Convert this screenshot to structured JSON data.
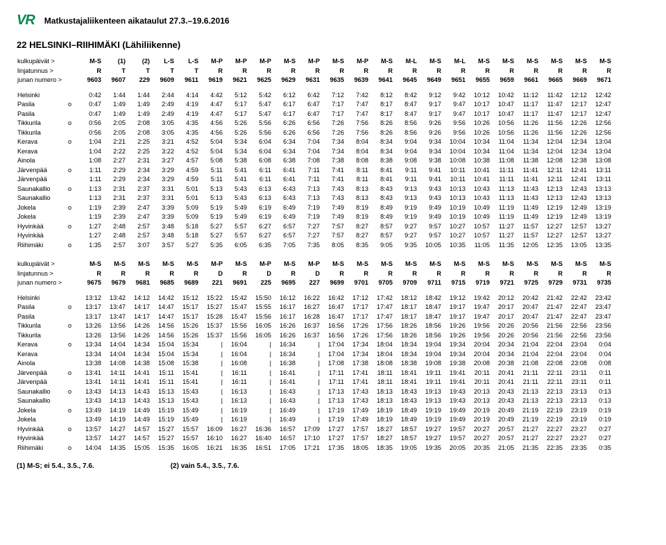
{
  "header": {
    "logo": "VR",
    "title": "Matkustajaliikenteen aikataulut 27.3.–19.6.2016"
  },
  "route_title": "22 HELSINKI–RIIHIMÄKI (Lähiliikenne)",
  "labels": {
    "days": "kulkupäivät >",
    "line": "linjatunnus >",
    "train": "junan numero >"
  },
  "footnotes": {
    "f1": "(1) M-S; ei 5.4., 3.5., 7.6.",
    "f2": "(2) vain 5.4., 3.5., 7.6."
  },
  "block1": {
    "days": [
      "M-S",
      "(1)",
      "(2)",
      "L-S",
      "L-S",
      "M-P",
      "M-P",
      "M-P",
      "M-S",
      "M-P",
      "M-S",
      "M-P",
      "M-S",
      "M-L",
      "M-S",
      "M-L",
      "M-S",
      "M-S",
      "M-S",
      "M-S",
      "M-S",
      "M-S"
    ],
    "line": [
      "R",
      "T",
      "T",
      "T",
      "T",
      "R",
      "R",
      "R",
      "R",
      "R",
      "R",
      "R",
      "R",
      "R",
      "R",
      "R",
      "R",
      "R",
      "R",
      "R",
      "R",
      "R"
    ],
    "train": [
      "9603",
      "9607",
      "229",
      "9609",
      "9611",
      "9619",
      "9621",
      "9625",
      "9629",
      "9631",
      "9635",
      "9639",
      "9641",
      "9645",
      "9649",
      "9651",
      "9655",
      "9659",
      "9661",
      "9665",
      "9669",
      "9671"
    ],
    "rows": [
      {
        "station": "Helsinki",
        "mark": "",
        "t": [
          "0:42",
          "1:44",
          "1:44",
          "2:44",
          "4:14",
          "4:42",
          "5:12",
          "5:42",
          "6:12",
          "6:42",
          "7:12",
          "7:42",
          "8:12",
          "8:42",
          "9:12",
          "9:42",
          "10:12",
          "10:42",
          "11:12",
          "11:42",
          "12:12",
          "12:42"
        ]
      },
      {
        "station": "Pasila",
        "mark": "o",
        "t": [
          "0:47",
          "1:49",
          "1:49",
          "2:49",
          "4:19",
          "4:47",
          "5:17",
          "5:47",
          "6:17",
          "6:47",
          "7:17",
          "7:47",
          "8:17",
          "8:47",
          "9:17",
          "9:47",
          "10:17",
          "10:47",
          "11:17",
          "11:47",
          "12:17",
          "12:47"
        ]
      },
      {
        "station": "Pasila",
        "mark": "",
        "t": [
          "0:47",
          "1:49",
          "1:49",
          "2:49",
          "4:19",
          "4:47",
          "5:17",
          "5:47",
          "6:17",
          "6:47",
          "7:17",
          "7:47",
          "8:17",
          "8:47",
          "9:17",
          "9:47",
          "10:17",
          "10:47",
          "11:17",
          "11:47",
          "12:17",
          "12:47"
        ]
      },
      {
        "station": "Tikkurila",
        "mark": "o",
        "t": [
          "0:56",
          "2:05",
          "2:08",
          "3:05",
          "4:35",
          "4:56",
          "5:26",
          "5:56",
          "6:26",
          "6:56",
          "7:26",
          "7:56",
          "8:26",
          "8:56",
          "9:26",
          "9:56",
          "10:26",
          "10:56",
          "11:26",
          "11:56",
          "12:26",
          "12:56"
        ]
      },
      {
        "station": "Tikkurila",
        "mark": "",
        "t": [
          "0:56",
          "2:05",
          "2:08",
          "3:05",
          "4:35",
          "4:56",
          "5:26",
          "5:56",
          "6:26",
          "6:56",
          "7:26",
          "7:56",
          "8:26",
          "8:56",
          "9:26",
          "9:56",
          "10:26",
          "10:56",
          "11:26",
          "11:56",
          "12:26",
          "12:56"
        ]
      },
      {
        "station": "Kerava",
        "mark": "o",
        "t": [
          "1:04",
          "2:21",
          "2:25",
          "3:21",
          "4:52",
          "5:04",
          "5:34",
          "6:04",
          "6:34",
          "7:04",
          "7:34",
          "8:04",
          "8:34",
          "9:04",
          "9:34",
          "10:04",
          "10:34",
          "11:04",
          "11:34",
          "12:04",
          "12:34",
          "13:04"
        ]
      },
      {
        "station": "Kerava",
        "mark": "",
        "t": [
          "1:04",
          "2:22",
          "2:25",
          "3:22",
          "4:52",
          "5:04",
          "5:34",
          "6:04",
          "6:34",
          "7:04",
          "7:34",
          "8:04",
          "8:34",
          "9:04",
          "9:34",
          "10:04",
          "10:34",
          "11:04",
          "11:34",
          "12:04",
          "12:34",
          "13:04"
        ]
      },
      {
        "station": "Ainola",
        "mark": "",
        "t": [
          "1:08",
          "2:27",
          "2:31",
          "3:27",
          "4:57",
          "5:08",
          "5:38",
          "6:08",
          "6:38",
          "7:08",
          "7:38",
          "8:08",
          "8:38",
          "9:08",
          "9:38",
          "10:08",
          "10:38",
          "11:08",
          "11:38",
          "12:08",
          "12:38",
          "13:08"
        ]
      },
      {
        "station": "Järvenpää",
        "mark": "o",
        "t": [
          "1:11",
          "2:29",
          "2:34",
          "3:29",
          "4:59",
          "5:11",
          "5:41",
          "6:11",
          "6:41",
          "7:11",
          "7:41",
          "8:11",
          "8:41",
          "9:11",
          "9:41",
          "10:11",
          "10:41",
          "11:11",
          "11:41",
          "12:11",
          "12:41",
          "13:11"
        ]
      },
      {
        "station": "Järvenpää",
        "mark": "",
        "t": [
          "1:11",
          "2:29",
          "2:34",
          "3:29",
          "4:59",
          "5:11",
          "5:41",
          "6:11",
          "6:41",
          "7:11",
          "7:41",
          "8:11",
          "8:41",
          "9:11",
          "9:41",
          "10:11",
          "10:41",
          "11:11",
          "11:41",
          "12:11",
          "12:41",
          "13:11"
        ]
      },
      {
        "station": "Saunakallio",
        "mark": "o",
        "t": [
          "1:13",
          "2:31",
          "2:37",
          "3:31",
          "5:01",
          "5:13",
          "5:43",
          "6:13",
          "6:43",
          "7:13",
          "7:43",
          "8:13",
          "8:43",
          "9:13",
          "9:43",
          "10:13",
          "10:43",
          "11:13",
          "11:43",
          "12:13",
          "12:43",
          "13:13"
        ]
      },
      {
        "station": "Saunakallio",
        "mark": "",
        "t": [
          "1:13",
          "2:31",
          "2:37",
          "3:31",
          "5:01",
          "5:13",
          "5:43",
          "6:13",
          "6:43",
          "7:13",
          "7:43",
          "8:13",
          "8:43",
          "9:13",
          "9:43",
          "10:13",
          "10:43",
          "11:13",
          "11:43",
          "12:13",
          "12:43",
          "13:13"
        ]
      },
      {
        "station": "Jokela",
        "mark": "o",
        "t": [
          "1:19",
          "2:39",
          "2:47",
          "3:39",
          "5:09",
          "5:19",
          "5:49",
          "6:19",
          "6:49",
          "7:19",
          "7:49",
          "8:19",
          "8:49",
          "9:19",
          "9:49",
          "10:19",
          "10:49",
          "11:19",
          "11:49",
          "12:19",
          "12:49",
          "13:19"
        ]
      },
      {
        "station": "Jokela",
        "mark": "",
        "t": [
          "1:19",
          "2:39",
          "2:47",
          "3:39",
          "5:09",
          "5:19",
          "5:49",
          "6:19",
          "6:49",
          "7:19",
          "7:49",
          "8:19",
          "8:49",
          "9:19",
          "9:49",
          "10:19",
          "10:49",
          "11:19",
          "11:49",
          "12:19",
          "12:49",
          "13:19"
        ]
      },
      {
        "station": "Hyvinkää",
        "mark": "o",
        "t": [
          "1:27",
          "2:48",
          "2:57",
          "3:48",
          "5:18",
          "5:27",
          "5:57",
          "6:27",
          "6:57",
          "7:27",
          "7:57",
          "8:27",
          "8:57",
          "9:27",
          "9:57",
          "10:27",
          "10:57",
          "11:27",
          "11:57",
          "12:27",
          "12:57",
          "13:27"
        ]
      },
      {
        "station": "Hyvinkää",
        "mark": "",
        "t": [
          "1:27",
          "2:48",
          "2:57",
          "3:48",
          "5:18",
          "5:27",
          "5:57",
          "6:27",
          "6:57",
          "7:27",
          "7:57",
          "8:27",
          "8:57",
          "9:27",
          "9:57",
          "10:27",
          "10:57",
          "11:27",
          "11:57",
          "12:27",
          "12:57",
          "13:27"
        ]
      },
      {
        "station": "Riihimäki",
        "mark": "o",
        "t": [
          "1:35",
          "2:57",
          "3:07",
          "3:57",
          "5:27",
          "5:35",
          "6:05",
          "6:35",
          "7:05",
          "7:35",
          "8:05",
          "8:35",
          "9:05",
          "9:35",
          "10:05",
          "10:35",
          "11:05",
          "11:35",
          "12:05",
          "12:35",
          "13:05",
          "13:35"
        ]
      }
    ]
  },
  "block2": {
    "days": [
      "M-S",
      "M-S",
      "M-S",
      "M-S",
      "M-S",
      "M-P",
      "M-S",
      "M-P",
      "M-S",
      "M-P",
      "M-S",
      "M-S",
      "M-S",
      "M-S",
      "M-S",
      "M-S",
      "M-S",
      "M-S",
      "M-S",
      "M-S",
      "M-S",
      "M-S"
    ],
    "line": [
      "R",
      "R",
      "R",
      "R",
      "R",
      "D",
      "R",
      "D",
      "R",
      "D",
      "R",
      "R",
      "R",
      "R",
      "R",
      "R",
      "R",
      "R",
      "R",
      "R",
      "R",
      "R"
    ],
    "train": [
      "9675",
      "9679",
      "9681",
      "9685",
      "9689",
      "221",
      "9691",
      "225",
      "9695",
      "227",
      "9699",
      "9701",
      "9705",
      "9709",
      "9711",
      "9715",
      "9719",
      "9721",
      "9725",
      "9729",
      "9731",
      "9735"
    ],
    "rows": [
      {
        "station": "Helsinki",
        "mark": "",
        "t": [
          "13:12",
          "13:42",
          "14:12",
          "14:42",
          "15:12",
          "15:22",
          "15:42",
          "15:50",
          "16:12",
          "16:22",
          "16:42",
          "17:12",
          "17:42",
          "18:12",
          "18:42",
          "19:12",
          "19:42",
          "20:12",
          "20:42",
          "21:42",
          "22:42",
          "23:42"
        ]
      },
      {
        "station": "Pasila",
        "mark": "o",
        "t": [
          "13:17",
          "13:47",
          "14:17",
          "14:47",
          "15:17",
          "15:27",
          "15:47",
          "15:55",
          "16:17",
          "16:27",
          "16:47",
          "17:17",
          "17:47",
          "18:17",
          "18:47",
          "19:17",
          "19:47",
          "20:17",
          "20:47",
          "21:47",
          "22:47",
          "23:47"
        ]
      },
      {
        "station": "Pasila",
        "mark": "",
        "t": [
          "13:17",
          "13:47",
          "14:17",
          "14:47",
          "15:17",
          "15:28",
          "15:47",
          "15:56",
          "16:17",
          "16:28",
          "16:47",
          "17:17",
          "17:47",
          "18:17",
          "18:47",
          "19:17",
          "19:47",
          "20:17",
          "20:47",
          "21:47",
          "22:47",
          "23:47"
        ]
      },
      {
        "station": "Tikkurila",
        "mark": "o",
        "t": [
          "13:26",
          "13:56",
          "14:26",
          "14:56",
          "15:26",
          "15:37",
          "15:56",
          "16:05",
          "16:26",
          "16:37",
          "16:56",
          "17:26",
          "17:56",
          "18:26",
          "18:56",
          "19:26",
          "19:56",
          "20:26",
          "20:56",
          "21:56",
          "22:56",
          "23:56"
        ]
      },
      {
        "station": "Tikkurila",
        "mark": "",
        "t": [
          "13:26",
          "13:56",
          "14:26",
          "14:56",
          "15:26",
          "15:37",
          "15:56",
          "16:05",
          "16:26",
          "16:37",
          "16:56",
          "17:26",
          "17:56",
          "18:26",
          "18:56",
          "19:26",
          "19:56",
          "20:26",
          "20:56",
          "21:56",
          "22:56",
          "23:56"
        ]
      },
      {
        "station": "Kerava",
        "mark": "o",
        "t": [
          "13:34",
          "14:04",
          "14:34",
          "15:04",
          "15:34",
          "|",
          "16:04",
          "|",
          "16:34",
          "|",
          "17:04",
          "17:34",
          "18:04",
          "18:34",
          "19:04",
          "19:34",
          "20:04",
          "20:34",
          "21:04",
          "22:04",
          "23:04",
          "0:04"
        ]
      },
      {
        "station": "Kerava",
        "mark": "",
        "t": [
          "13:34",
          "14:04",
          "14:34",
          "15:04",
          "15:34",
          "|",
          "16:04",
          "|",
          "16:34",
          "|",
          "17:04",
          "17:34",
          "18:04",
          "18:34",
          "19:04",
          "19:34",
          "20:04",
          "20:34",
          "21:04",
          "22:04",
          "23:04",
          "0:04"
        ]
      },
      {
        "station": "Ainola",
        "mark": "",
        "t": [
          "13:38",
          "14:08",
          "14:38",
          "15:08",
          "15:38",
          "|",
          "16:08",
          "|",
          "16:38",
          "|",
          "17:08",
          "17:38",
          "18:08",
          "18:38",
          "19:08",
          "19:38",
          "20:08",
          "20:38",
          "21:08",
          "22:08",
          "23:08",
          "0:08"
        ]
      },
      {
        "station": "Järvenpää",
        "mark": "o",
        "t": [
          "13:41",
          "14:11",
          "14:41",
          "15:11",
          "15:41",
          "|",
          "16:11",
          "|",
          "16:41",
          "|",
          "17:11",
          "17:41",
          "18:11",
          "18:41",
          "19:11",
          "19:41",
          "20:11",
          "20:41",
          "21:11",
          "22:11",
          "23:11",
          "0:11"
        ]
      },
      {
        "station": "Järvenpää",
        "mark": "",
        "t": [
          "13:41",
          "14:11",
          "14:41",
          "15:11",
          "15:41",
          "|",
          "16:11",
          "|",
          "16:41",
          "|",
          "17:11",
          "17:41",
          "18:11",
          "18:41",
          "19:11",
          "19:41",
          "20:11",
          "20:41",
          "21:11",
          "22:11",
          "23:11",
          "0:11"
        ]
      },
      {
        "station": "Saunakallio",
        "mark": "o",
        "t": [
          "13:43",
          "14:13",
          "14:43",
          "15:13",
          "15:43",
          "|",
          "16:13",
          "|",
          "16:43",
          "|",
          "17:13",
          "17:43",
          "18:13",
          "18:43",
          "19:13",
          "19:43",
          "20:13",
          "20:43",
          "21:13",
          "22:13",
          "23:13",
          "0:13"
        ]
      },
      {
        "station": "Saunakallio",
        "mark": "",
        "t": [
          "13:43",
          "14:13",
          "14:43",
          "15:13",
          "15:43",
          "|",
          "16:13",
          "|",
          "16:43",
          "|",
          "17:13",
          "17:43",
          "18:13",
          "18:43",
          "19:13",
          "19:43",
          "20:13",
          "20:43",
          "21:13",
          "22:13",
          "23:13",
          "0:13"
        ]
      },
      {
        "station": "Jokela",
        "mark": "o",
        "t": [
          "13:49",
          "14:19",
          "14:49",
          "15:19",
          "15:49",
          "|",
          "16:19",
          "|",
          "16:49",
          "|",
          "17:19",
          "17:49",
          "18:19",
          "18:49",
          "19:19",
          "19:49",
          "20:19",
          "20:49",
          "21:19",
          "22:19",
          "23:19",
          "0:19"
        ]
      },
      {
        "station": "Jokela",
        "mark": "",
        "t": [
          "13:49",
          "14:19",
          "14:49",
          "15:19",
          "15:49",
          "|",
          "16:19",
          "|",
          "16:49",
          "|",
          "17:19",
          "17:49",
          "18:19",
          "18:49",
          "19:19",
          "19:49",
          "20:19",
          "20:49",
          "21:19",
          "22:19",
          "23:19",
          "0:19"
        ]
      },
      {
        "station": "Hyvinkää",
        "mark": "o",
        "t": [
          "13:57",
          "14:27",
          "14:57",
          "15:27",
          "15:57",
          "16:09",
          "16:27",
          "16:36",
          "16:57",
          "17:09",
          "17:27",
          "17:57",
          "18:27",
          "18:57",
          "19:27",
          "19:57",
          "20:27",
          "20:57",
          "21:27",
          "22:27",
          "23:27",
          "0:27"
        ]
      },
      {
        "station": "Hyvinkää",
        "mark": "",
        "t": [
          "13:57",
          "14:27",
          "14:57",
          "15:27",
          "15:57",
          "16:10",
          "16:27",
          "16:40",
          "16:57",
          "17:10",
          "17:27",
          "17:57",
          "18:27",
          "18:57",
          "19:27",
          "19:57",
          "20:27",
          "20:57",
          "21:27",
          "22:27",
          "23:27",
          "0:27"
        ]
      },
      {
        "station": "Riihimäki",
        "mark": "o",
        "t": [
          "14:04",
          "14:35",
          "15:05",
          "15:35",
          "16:05",
          "16:21",
          "16:35",
          "16:51",
          "17:05",
          "17:21",
          "17:35",
          "18:05",
          "18:35",
          "19:05",
          "19:35",
          "20:05",
          "20:35",
          "21:05",
          "21:35",
          "22:35",
          "23:35",
          "0:35"
        ]
      }
    ]
  }
}
